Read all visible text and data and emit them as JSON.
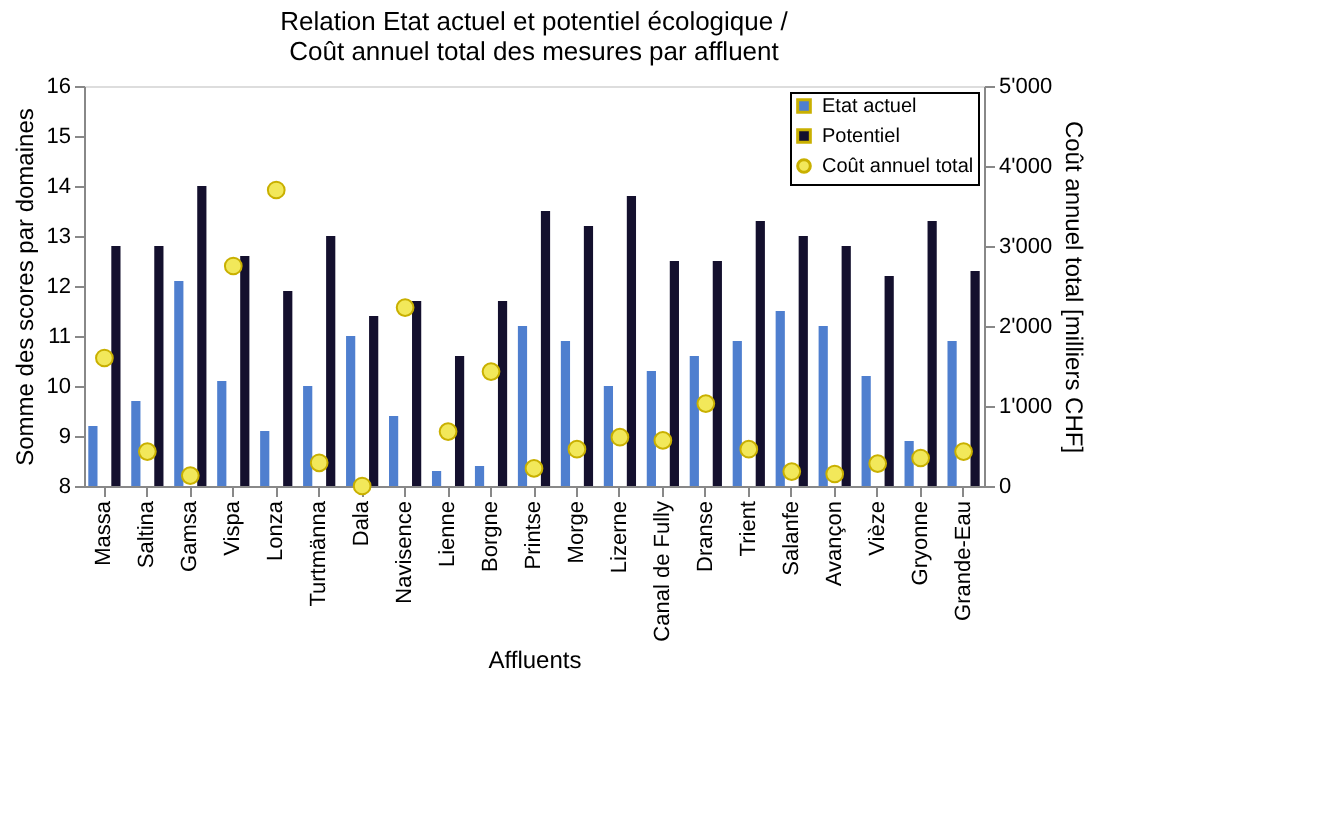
{
  "chart_data": {
    "type": "bar",
    "title": "Relation Etat actuel et potentiel écologique /\nCoût annuel total des mesures par affluent",
    "xlabel": "Affluents",
    "ylabel": "Somme des scores par domaines",
    "y2label": "Coût annuel total [milliers CHF]",
    "categories": [
      "Massa",
      "Saltina",
      "Gamsa",
      "Vispa",
      "Lonza",
      "Turtmänna",
      "Dala",
      "Navisence",
      "Lienne",
      "Borgne",
      "Printse",
      "Morge",
      "Lizerne",
      "Canal de Fully",
      "Dranse",
      "Trient",
      "Salanfe",
      "Avançon",
      "Vièze",
      "Gryonne",
      "Grande-Eau"
    ],
    "series": [
      {
        "name": "Etat actuel",
        "color": "#4f7fcf",
        "values": [
          9.2,
          9.7,
          12.1,
          10.1,
          9.1,
          10.0,
          11.0,
          9.4,
          8.3,
          8.4,
          11.2,
          10.9,
          10.0,
          10.3,
          10.6,
          10.9,
          11.5,
          11.2,
          10.2,
          8.9,
          10.9
        ]
      },
      {
        "name": "Potentiel",
        "color": "#14102e",
        "values": [
          12.8,
          12.8,
          14.0,
          12.6,
          11.9,
          13.0,
          11.4,
          11.7,
          10.6,
          11.7,
          13.5,
          13.2,
          13.8,
          12.5,
          12.5,
          13.3,
          13.0,
          12.8,
          12.2,
          13.3,
          12.3
        ]
      },
      {
        "name": "Coût annuel total",
        "type": "scatter",
        "axis": "y2",
        "color": "#f2e85a",
        "values": [
          1600,
          430,
          130,
          2750,
          3700,
          290,
          0,
          2230,
          680,
          1430,
          220,
          460,
          610,
          570,
          1030,
          460,
          180,
          150,
          280,
          350,
          430
        ]
      }
    ],
    "ylim": [
      8,
      16
    ],
    "yticks": [
      8,
      9,
      10,
      11,
      12,
      13,
      14,
      15,
      16
    ],
    "y2lim": [
      0,
      5000
    ],
    "y2ticks": [
      0,
      {
        "value": 1000,
        "label": "1'000"
      },
      {
        "value": 2000,
        "label": "2'000"
      },
      {
        "value": 3000,
        "label": "3'000"
      },
      {
        "value": 4000,
        "label": "4'000"
      },
      {
        "value": 5000,
        "label": "5'000"
      }
    ],
    "legend": "top right",
    "marker": "circle",
    "grid": false
  }
}
